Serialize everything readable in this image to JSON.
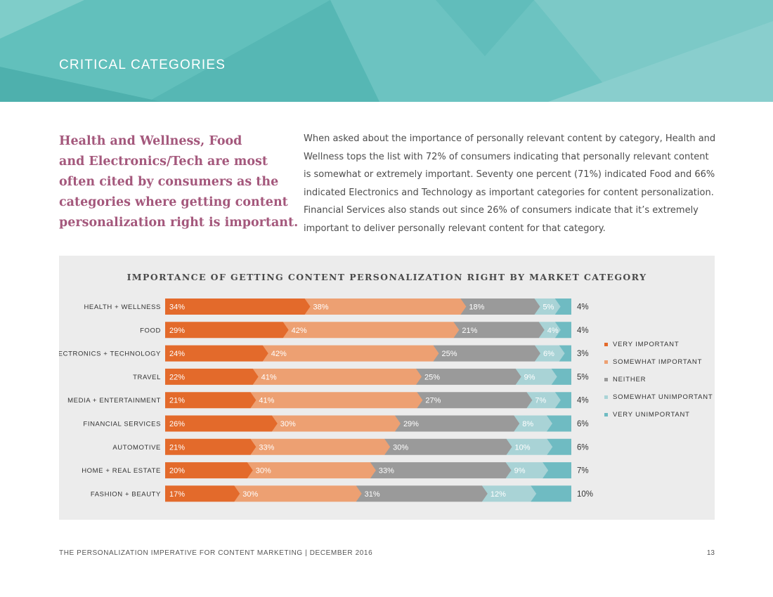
{
  "header": {
    "title": "CRITICAL CATEGORIES"
  },
  "intro": {
    "highlight_lines": [
      "Health and Wellness, Food",
      "and Electronics/Tech are most",
      "often cited by consumers as the",
      "categories where getting content",
      "personalization right is important."
    ],
    "body_lines": [
      "When asked about the importance of personally relevant content by category, Health and",
      "Wellness tops the list with 72% of consumers indicating that personally relevant content",
      "is somewhat or extremely important. Seventy one percent (71%) indicated Food and 66%",
      "indicated Electronics and Technology as important categories for content personalization.",
      "Financial Services also stands out since 26% of consumers indicate that it’s extremely",
      "important to deliver personally relevant content for that category."
    ]
  },
  "chart_data": {
    "type": "bar",
    "stacked": true,
    "orientation": "horizontal",
    "title": "IMPORTANCE OF GETTING CONTENT PERSONALIZATION RIGHT BY MARKET CATEGORY",
    "categories": [
      "HEALTH + WELLNESS",
      "FOOD",
      "ELECTRONICS + TECHNOLOGY",
      "TRAVEL",
      "MEDIA + ENTERTAINMENT",
      "FINANCIAL SERVICES",
      "AUTOMOTIVE",
      "HOME + REAL ESTATE",
      "FASHION + BEAUTY"
    ],
    "series": [
      {
        "name": "VERY IMPORTANT",
        "color": "#e36a2b",
        "values": [
          34,
          29,
          24,
          22,
          21,
          26,
          21,
          20,
          17
        ]
      },
      {
        "name": "SOMEWHAT IMPORTANT",
        "color": "#eda072",
        "values": [
          38,
          42,
          42,
          41,
          41,
          30,
          33,
          30,
          30
        ]
      },
      {
        "name": "NEITHER",
        "color": "#9a9a9a",
        "values": [
          18,
          21,
          25,
          25,
          27,
          29,
          30,
          33,
          31
        ]
      },
      {
        "name": "SOMEWHAT UNIMPORTANT",
        "color": "#a9d3d6",
        "values": [
          5,
          4,
          6,
          9,
          7,
          8,
          10,
          9,
          12
        ]
      },
      {
        "name": "VERY UNIMPORTANT",
        "color": "#6fbbc2",
        "values": [
          4,
          4,
          3,
          5,
          4,
          6,
          6,
          7,
          10
        ]
      }
    ],
    "unit": "%",
    "legend_position": "right",
    "grid": false
  },
  "footer": {
    "left": "THE PERSONALIZATION IMPERATIVE FOR CONTENT MARKETING | DECEMBER 2016",
    "page": "13"
  }
}
